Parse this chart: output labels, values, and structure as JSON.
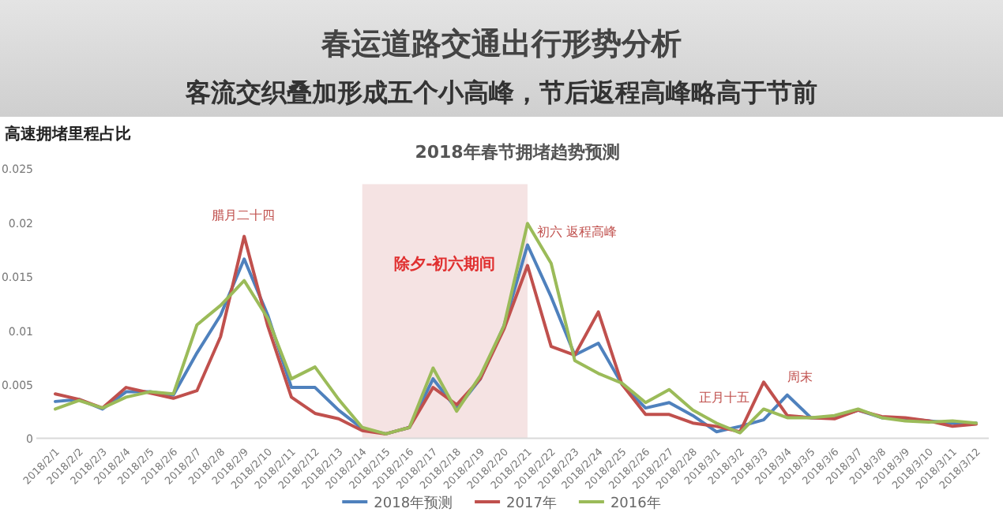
{
  "chart_data": {
    "type": "line",
    "title": "春运道路交通出行形势分析",
    "subtitle": "客流交织叠加形成五个小高峰，节后返程高峰略高于节前",
    "ylabel": "高速拥堵里程占比",
    "categories": [
      "2018/2/1",
      "2018/2/2",
      "2018/2/3",
      "2018/2/4",
      "2018/2/5",
      "2018/2/6",
      "2018/2/7",
      "2018/2/8",
      "2018/2/9",
      "2018/2/10",
      "2018/2/11",
      "2018/2/12",
      "2018/2/13",
      "2018/2/14",
      "2018/2/15",
      "2018/2/16",
      "2018/2/17",
      "2018/2/18",
      "2018/2/19",
      "2018/2/20",
      "2018/2/21",
      "2018/2/22",
      "2018/2/23",
      "2018/2/24",
      "2018/2/25",
      "2018/2/26",
      "2018/2/27",
      "2018/2/28",
      "2018/3/1",
      "2018/3/2",
      "2018/3/3",
      "2018/3/4",
      "2018/3/5",
      "2018/3/6",
      "2018/3/7",
      "2018/3/8",
      "2018/3/9",
      "2018/3/10",
      "2018/3/11",
      "2018/3/12"
    ],
    "series": [
      {
        "name": "2018年预测",
        "color": "#4f81bd",
        "values": [
          0.0034,
          0.0036,
          0.0027,
          0.0043,
          0.0043,
          0.004,
          0.0079,
          0.0114,
          0.0166,
          0.0114,
          0.0047,
          0.0047,
          0.0026,
          0.0009,
          0.0004,
          0.001,
          0.0055,
          0.0027,
          0.0055,
          0.0104,
          0.0179,
          0.0131,
          0.0077,
          0.0088,
          0.005,
          0.0028,
          0.0033,
          0.0021,
          0.0006,
          0.0011,
          0.0017,
          0.004,
          0.0019,
          0.0019,
          0.0026,
          0.0019,
          0.0018,
          0.0016,
          0.0014,
          0.0014
        ]
      },
      {
        "name": "2017年",
        "color": "#c0504d",
        "values": [
          0.0041,
          0.0036,
          0.0028,
          0.0047,
          0.0042,
          0.0037,
          0.0044,
          0.0094,
          0.0187,
          0.0104,
          0.0038,
          0.0023,
          0.0018,
          0.0007,
          0.0004,
          0.001,
          0.0047,
          0.0031,
          0.0055,
          0.0101,
          0.016,
          0.0085,
          0.0077,
          0.0117,
          0.005,
          0.0022,
          0.0022,
          0.0014,
          0.0011,
          0.0006,
          0.0052,
          0.0021,
          0.0019,
          0.0018,
          0.0026,
          0.002,
          0.0019,
          0.0016,
          0.0011,
          0.0013
        ]
      },
      {
        "name": "2016年",
        "color": "#9bbb59",
        "values": [
          0.0027,
          0.0035,
          0.0028,
          0.0038,
          0.0043,
          0.0041,
          0.0105,
          0.0123,
          0.0146,
          0.0111,
          0.0055,
          0.0066,
          0.0036,
          0.001,
          0.0004,
          0.001,
          0.0065,
          0.0025,
          0.0058,
          0.0104,
          0.0199,
          0.0162,
          0.0072,
          0.006,
          0.0051,
          0.0033,
          0.0045,
          0.0026,
          0.0014,
          0.0005,
          0.0027,
          0.0019,
          0.0019,
          0.0021,
          0.0027,
          0.0019,
          0.0016,
          0.0015,
          0.0016,
          0.0014
        ]
      }
    ],
    "ylim": [
      0,
      0.025
    ],
    "yticks": [
      0,
      0.005,
      0.01,
      0.015,
      0.02,
      0.025
    ],
    "grid": false,
    "legend": "bottom",
    "bands": [
      {
        "axis": "x",
        "from": "2018/2/14",
        "to": "2018/2/21",
        "label": "除夕-初六期间",
        "color": "#f5e3e3"
      }
    ],
    "annotations": [
      "2018年春节拥堵趋势预测",
      "腊月二十四",
      {
        "text": "初六 返程高峰",
        "x": "2018/2/21",
        "y": 0.0199
      },
      {
        "text": "正月十五",
        "x": "2018/3/2",
        "y": 0.0005
      },
      {
        "text": "周末",
        "x": "2018/3/4",
        "y": 0.004
      }
    ]
  }
}
